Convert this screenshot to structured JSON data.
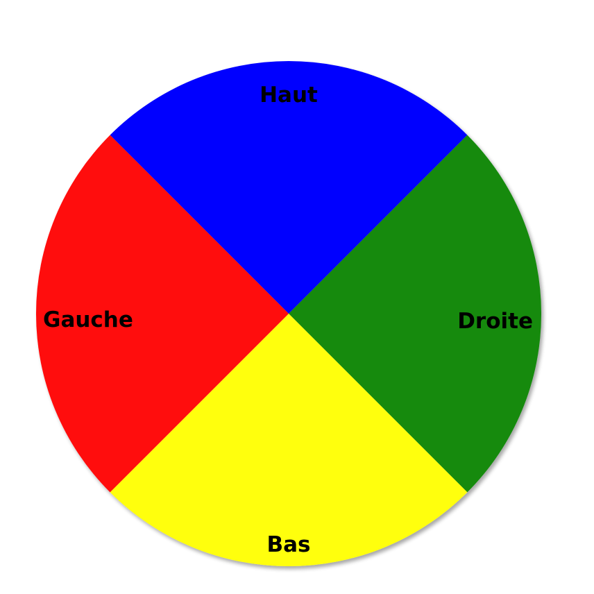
{
  "sectors": [
    {
      "id": "up",
      "label": "Haut",
      "color": "#0000FF"
    },
    {
      "id": "right",
      "label": "Droite",
      "color": "#128A0A"
    },
    {
      "id": "down",
      "label": "Bas",
      "color": "#FFFF0A"
    },
    {
      "id": "left",
      "label": "Gauche",
      "color": "#FF0A0A"
    }
  ]
}
